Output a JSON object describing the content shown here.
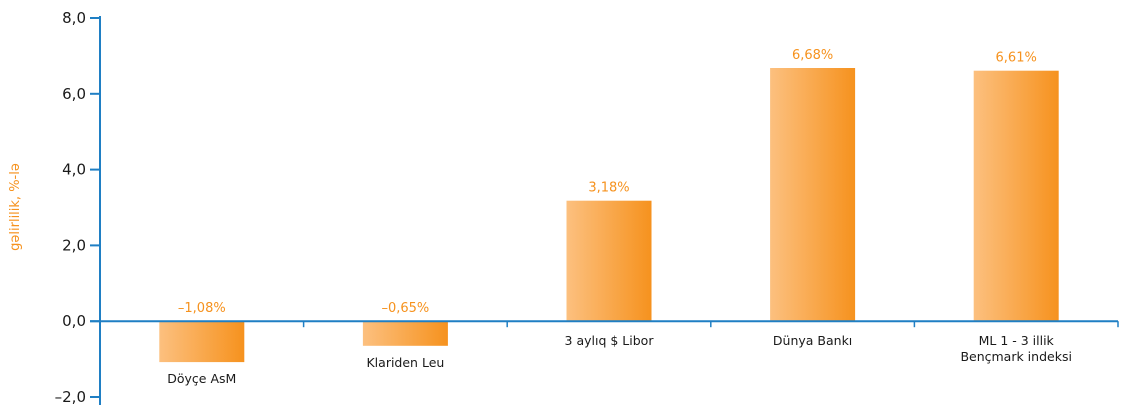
{
  "chart_data": {
    "type": "bar",
    "title": "",
    "xlabel": "",
    "ylabel": "gəlirlilik, %-lə",
    "ylim": [
      -2.0,
      8.0
    ],
    "yticks": [
      -2.0,
      0.0,
      2.0,
      4.0,
      6.0,
      8.0
    ],
    "ytick_labels": [
      "–2,0",
      "0,0",
      "2,0",
      "4,0",
      "6,0",
      "8,0"
    ],
    "categories": [
      [
        "Döyçe AsM"
      ],
      [
        "Klariden Leu"
      ],
      [
        "3 aylıq $ Libor"
      ],
      [
        "Dünya Bankı"
      ],
      [
        "ML 1 - 3 illik",
        "Bençmark indeksi"
      ]
    ],
    "values": [
      -1.08,
      -0.65,
      3.18,
      6.68,
      6.61
    ],
    "value_labels": [
      "–1,08%",
      "–0,65%",
      "3,18%",
      "6,68%",
      "6,61%"
    ],
    "grid": false,
    "legend": "none",
    "colors": {
      "axis": "#1f7fc4",
      "bar_light": "#fcc07f",
      "bar_dark": "#f6921e",
      "label": "#f6921e",
      "text": "#1a1a1a"
    }
  }
}
